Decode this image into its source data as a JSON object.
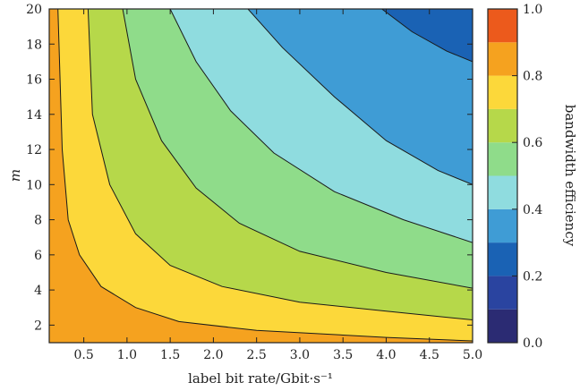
{
  "chart_data": {
    "type": "heatmap",
    "subtype": "filled-contour",
    "title": "",
    "xlabel": "label bit rate/Gbit·s⁻¹",
    "ylabel": "m",
    "colorbar_label": "bandwidth efficiency",
    "xlim": [
      0.1,
      5.0
    ],
    "ylim": [
      1,
      20
    ],
    "x_ticks": [
      "0.5",
      "1.0",
      "1.5",
      "2.0",
      "2.5",
      "3.0",
      "3.5",
      "4.0",
      "4.5",
      "5.0"
    ],
    "y_ticks": [
      "2",
      "4",
      "6",
      "8",
      "10",
      "12",
      "14",
      "16",
      "18",
      "20"
    ],
    "colorbar_ticks": [
      "0.0",
      "0.2",
      "0.4",
      "0.6",
      "0.8",
      "1.0"
    ],
    "colorbar_range": [
      0.0,
      1.0
    ],
    "levels": [
      0.0,
      0.1,
      0.2,
      0.3,
      0.4,
      0.5,
      0.6,
      0.7,
      0.8,
      0.9,
      1.0
    ],
    "level_colors": [
      "#2b2b73",
      "#2a44a0",
      "#1a62b4",
      "#3f9cd5",
      "#8fdcdf",
      "#8fdc8a",
      "#b6d84a",
      "#fcd83a",
      "#f5a21f",
      "#ec5a1c"
    ],
    "contour_lines": [
      {
        "level": 0.8,
        "points": [
          [
            0.2,
            20
          ],
          [
            0.25,
            12
          ],
          [
            0.32,
            8
          ],
          [
            0.45,
            6
          ],
          [
            0.7,
            4.2
          ],
          [
            1.1,
            3.0
          ],
          [
            1.6,
            2.2
          ],
          [
            2.5,
            1.7
          ],
          [
            4.0,
            1.3
          ],
          [
            5.0,
            1.1
          ]
        ]
      },
      {
        "level": 0.7,
        "points": [
          [
            0.55,
            20
          ],
          [
            0.6,
            14
          ],
          [
            0.8,
            10
          ],
          [
            1.1,
            7.2
          ],
          [
            1.5,
            5.4
          ],
          [
            2.1,
            4.2
          ],
          [
            3.0,
            3.3
          ],
          [
            4.0,
            2.8
          ],
          [
            5.0,
            2.3
          ]
        ]
      },
      {
        "level": 0.6,
        "points": [
          [
            0.95,
            20
          ],
          [
            1.1,
            16
          ],
          [
            1.4,
            12.5
          ],
          [
            1.8,
            9.8
          ],
          [
            2.3,
            7.8
          ],
          [
            3.0,
            6.2
          ],
          [
            4.0,
            5.0
          ],
          [
            5.0,
            4.1
          ]
        ]
      },
      {
        "level": 0.5,
        "points": [
          [
            1.5,
            20
          ],
          [
            1.8,
            17
          ],
          [
            2.2,
            14.2
          ],
          [
            2.7,
            11.8
          ],
          [
            3.4,
            9.6
          ],
          [
            4.2,
            8.0
          ],
          [
            5.0,
            6.7
          ]
        ]
      },
      {
        "level": 0.4,
        "points": [
          [
            2.4,
            20
          ],
          [
            2.8,
            17.8
          ],
          [
            3.4,
            15
          ],
          [
            4.0,
            12.5
          ],
          [
            4.6,
            10.8
          ],
          [
            5.0,
            10.0
          ]
        ]
      },
      {
        "level": 0.3,
        "points": [
          [
            3.95,
            20
          ],
          [
            4.3,
            18.7
          ],
          [
            4.7,
            17.6
          ],
          [
            5.0,
            17.0
          ]
        ]
      }
    ]
  }
}
